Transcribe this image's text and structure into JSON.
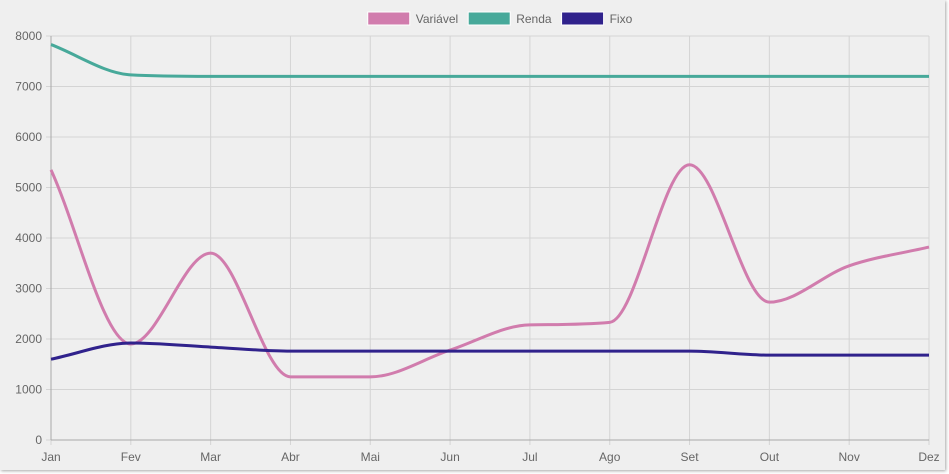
{
  "chart_data": {
    "type": "line",
    "categories": [
      "Jan",
      "Fev",
      "Mar",
      "Abr",
      "Mai",
      "Jun",
      "Jul",
      "Ago",
      "Set",
      "Out",
      "Nov",
      "Dez"
    ],
    "series": [
      {
        "name": "Variável",
        "color": "#d17cad",
        "values": [
          5350,
          1900,
          3700,
          1250,
          1250,
          1780,
          2280,
          2330,
          5450,
          2730,
          3450,
          3820
        ]
      },
      {
        "name": "Renda",
        "color": "#47a99a",
        "values": [
          7830,
          7230,
          7200,
          7200,
          7200,
          7200,
          7200,
          7200,
          7200,
          7200,
          7200,
          7200
        ]
      },
      {
        "name": "Fixo",
        "color": "#30228c",
        "values": [
          1600,
          1920,
          1840,
          1760,
          1760,
          1760,
          1760,
          1760,
          1760,
          1680,
          1680,
          1680
        ]
      }
    ],
    "y_ticks": [
      "0",
      "1000",
      "2000",
      "3000",
      "4000",
      "5000",
      "6000",
      "7000",
      "8000"
    ],
    "ylim": [
      0,
      8000
    ],
    "grid": true,
    "legend_position": "top-center"
  }
}
